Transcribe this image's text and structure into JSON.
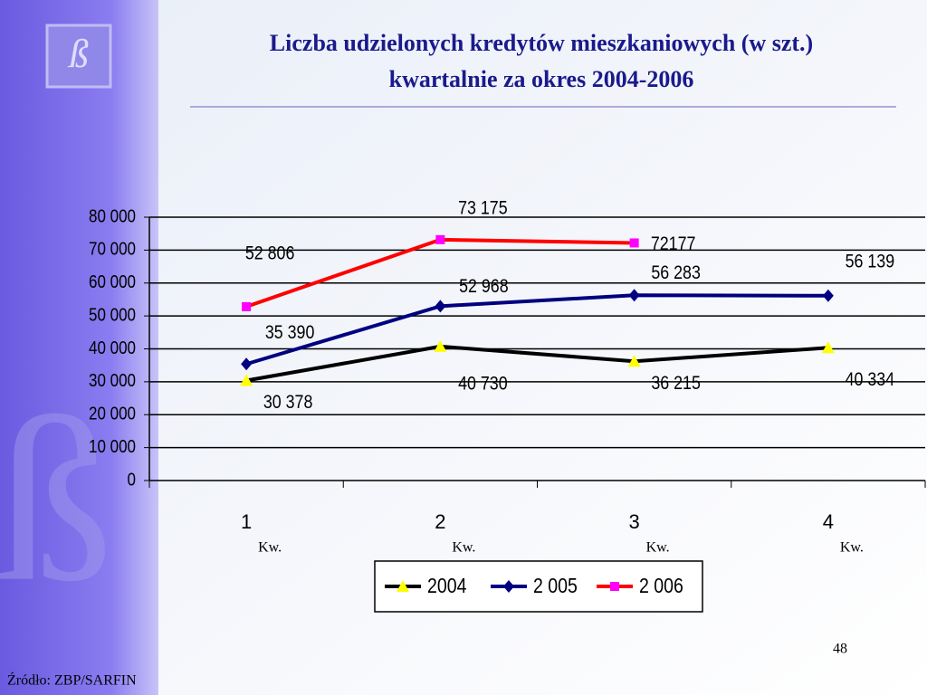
{
  "chart_data": {
    "type": "line",
    "title": [
      "Liczba udzielonych kredytów mieszkaniowych (w szt.)",
      "kwartalnie za okres 2004-2006"
    ],
    "categories": [
      "1",
      "2",
      "3",
      "4"
    ],
    "category_sublabels": [
      "Kw.",
      "Kw.",
      "Kw.",
      "Kw."
    ],
    "series": [
      {
        "name": "2004",
        "color": "#000000",
        "marker": "triangle",
        "marker_color": "#ffff00",
        "values": [
          30378,
          40730,
          36215,
          40334
        ],
        "value_labels": [
          "30 378",
          "40 730",
          "36 215",
          "40 334"
        ]
      },
      {
        "name": "2 005",
        "color": "#000080",
        "marker": "diamond",
        "marker_color": "#000080",
        "values": [
          35390,
          52968,
          56283,
          56139
        ],
        "value_labels": [
          "35 390",
          "52 968",
          "56 283",
          "56 139"
        ]
      },
      {
        "name": "2 006",
        "color": "#ff0000",
        "marker": "square",
        "marker_color": "#ff00ff",
        "values": [
          52806,
          73175,
          72177,
          null
        ],
        "value_labels": [
          "52 806",
          "73 175",
          "72177",
          null
        ]
      }
    ],
    "ylim": [
      0,
      80000
    ],
    "yticks": [
      0,
      {
        "value": 10000,
        "label": "10 000"
      },
      {
        "value": 20000,
        "label": "20 000"
      },
      {
        "value": 30000,
        "label": "30 000"
      },
      {
        "value": 40000,
        "label": "40 000"
      },
      {
        "value": 50000,
        "label": "50 000"
      },
      {
        "value": 60000,
        "label": "60 000"
      },
      {
        "value": 70000,
        "label": "70 000"
      },
      {
        "value": 80000,
        "label": "80 000"
      }
    ],
    "grid": true,
    "legend": "bottom"
  },
  "footer": {
    "page_number": "48",
    "source": "Źródło: ZBP/SARFIN"
  }
}
